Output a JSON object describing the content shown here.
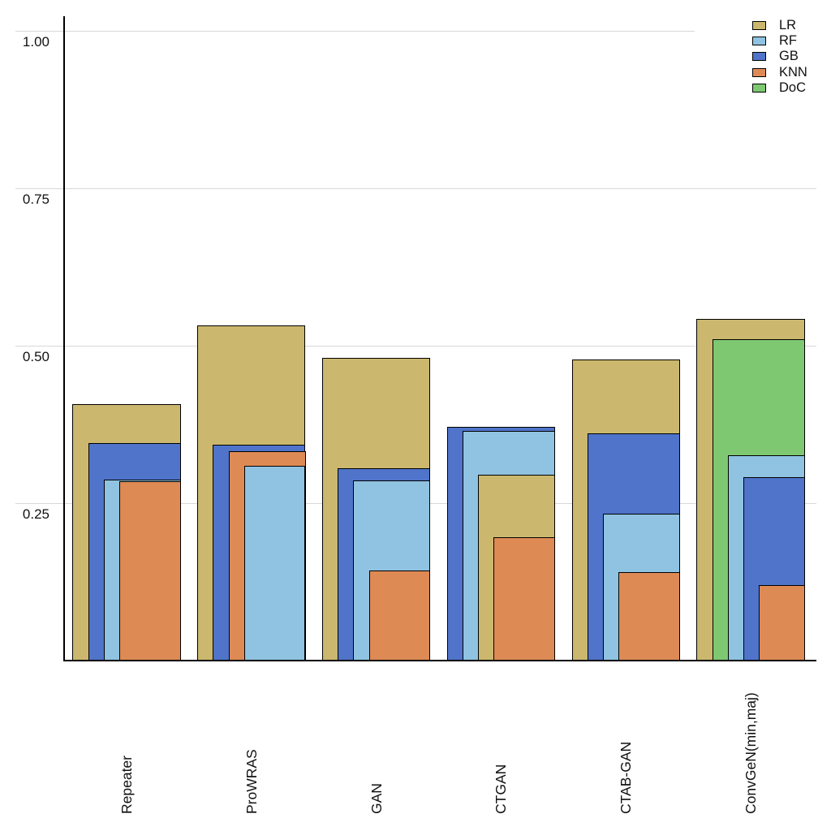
{
  "chart_data": {
    "type": "bar",
    "variant": "overlapping-nested-bars",
    "title": "",
    "xlabel": "",
    "ylabel": "",
    "categories": [
      "Repeater",
      "ProWRAS",
      "GAN",
      "CTGAN",
      "CTAB-GAN",
      "ConvGeN(min,maj)"
    ],
    "series": [
      {
        "name": "LR",
        "color": "#CBB86E",
        "values": [
          0.407,
          0.532,
          0.48,
          0.295,
          0.477,
          0.542
        ]
      },
      {
        "name": "RF",
        "color": "#8FC3E1",
        "values": [
          0.287,
          0.309,
          0.286,
          0.364,
          0.233,
          0.325
        ]
      },
      {
        "name": "GB",
        "color": "#4F74C9",
        "values": [
          0.345,
          0.342,
          0.305,
          0.37,
          0.36,
          0.291
        ]
      },
      {
        "name": "KNN",
        "color": "#DE8A55",
        "values": [
          0.284,
          0.332,
          0.143,
          0.195,
          0.14,
          0.119
        ]
      },
      {
        "name": "DoC",
        "color": "#7EC872",
        "values": [
          null,
          null,
          null,
          null,
          null,
          0.51
        ]
      }
    ],
    "yticks": [
      1.0,
      0.75,
      0.5,
      0.25
    ],
    "ytick_labels": [
      "1.00",
      "0.75",
      "0.50",
      "0.25"
    ],
    "ylim": [
      0,
      1.03
    ],
    "grid": true,
    "legend": {
      "position": "top-right",
      "entries": [
        "LR",
        "RF",
        "GB",
        "KNN",
        "DoC"
      ]
    },
    "style_notes": {
      "bar_edge_color": "#000000",
      "grid_color": "#d8d8d8",
      "background": "#ffffff",
      "nesting": "bars per category share right edge; taller bars drawn wider and behind"
    }
  }
}
